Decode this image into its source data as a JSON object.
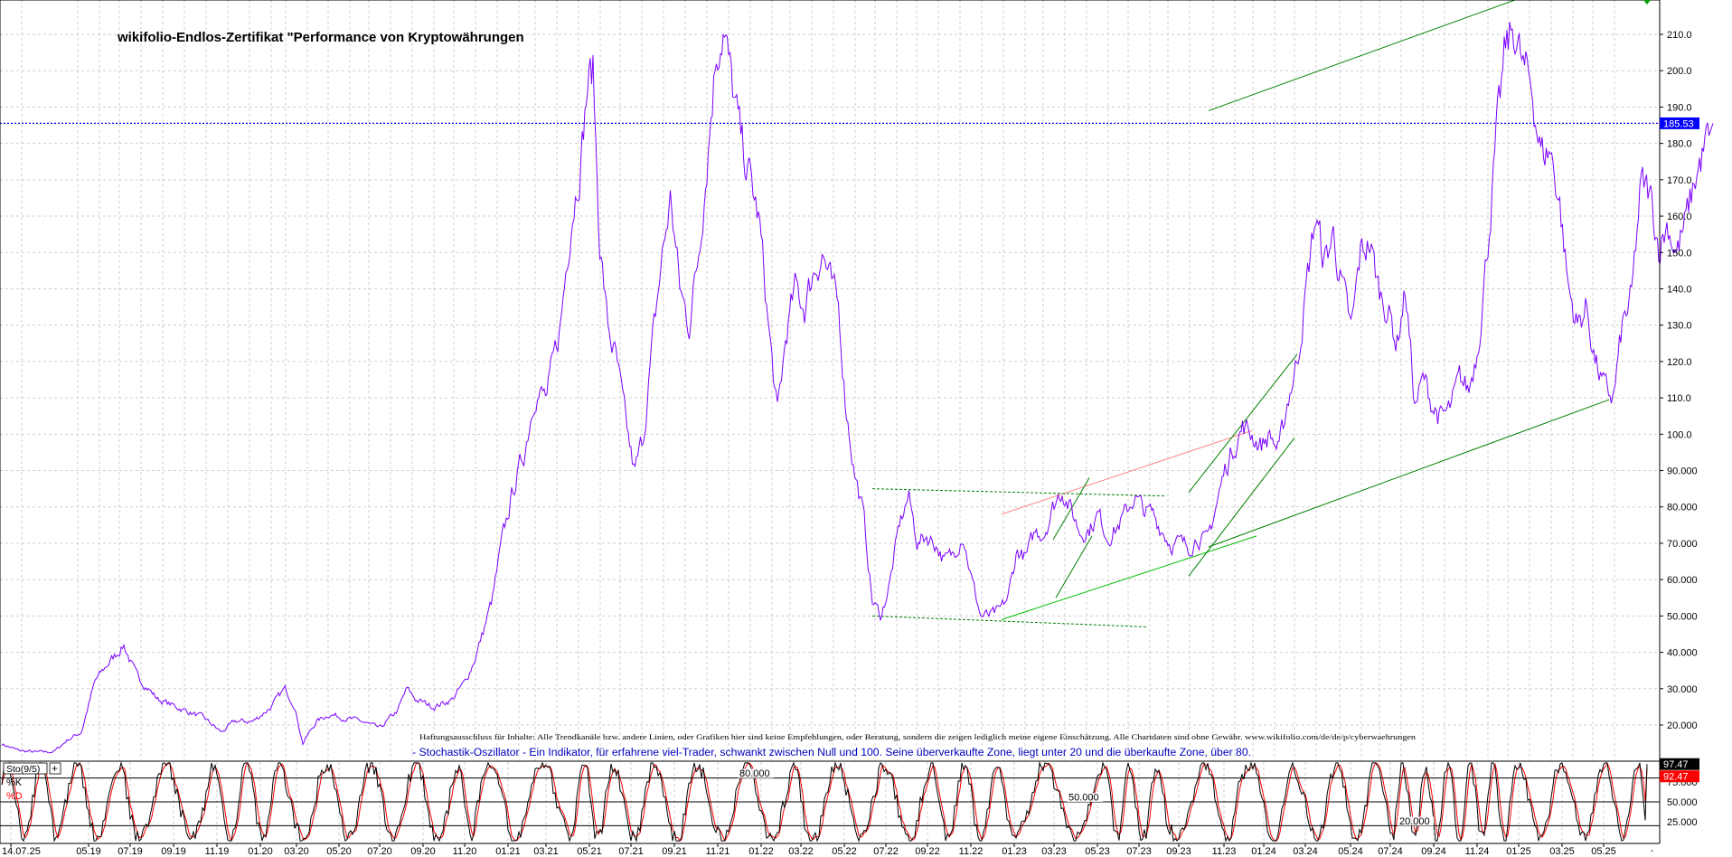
{
  "chart_data": [
    {
      "type": "line",
      "title": "wikifolio-Endlos-Zertifikat \"Performance von Kryptowährungen",
      "ylim": [
        10,
        220
      ],
      "y_ticks": [
        20,
        30,
        40,
        50,
        60,
        70,
        80,
        90,
        100,
        110,
        120,
        130,
        140,
        150,
        160,
        170,
        180,
        190,
        200,
        210
      ],
      "y_tick_labels": [
        "20.000",
        "30.000",
        "40.000",
        "50.000",
        "60.000",
        "70.000",
        "80.000",
        "90.000",
        "100.0",
        "110.0",
        "120.0",
        "130.0",
        "140.0",
        "150.0",
        "160.0",
        "170.0",
        "180.0",
        "190.0",
        "200.0",
        "210.0"
      ],
      "x_tick_labels": [
        "14.07.25",
        "05.19",
        "07.19",
        "09.19",
        "11.19",
        "01.20",
        "03.20",
        "05.20",
        "07.20",
        "09.20",
        "11.20",
        "01.21",
        "03.21",
        "05.21",
        "07.21",
        "09.21",
        "11.21",
        "01.22",
        "03.22",
        "05.22",
        "07.22",
        "09.22",
        "11.22",
        "01.23",
        "03.23",
        "05.23",
        "07.23",
        "09.23",
        "11.23",
        "01.24",
        "03.24",
        "05.24",
        "07.24",
        "09.24",
        "11.24",
        "01.25",
        "03.25",
        "05.25"
      ],
      "current_value": 185.53,
      "current_value_label": "185.53",
      "grid": true,
      "disclaimer": "Haftungsausschluss für Inhalte: Alle Trendkanäle bzw. andere Linien, oder Grafiken hier sind keine Empfehlungen, oder Beratung, sondern die zeigen lediglich meine eigene Einschätzung. Alle Chartdaten sind ohne Gewähr. www.wikifolio.com/de/de/p/cyberwaehrungen",
      "anchors": [
        [
          0,
          15
        ],
        [
          20,
          13
        ],
        [
          40,
          12.5
        ],
        [
          60,
          12.7
        ],
        [
          75,
          16
        ],
        [
          90,
          18
        ],
        [
          105,
          32
        ],
        [
          120,
          37
        ],
        [
          137,
          42
        ],
        [
          150,
          34
        ],
        [
          175,
          27
        ],
        [
          205,
          24
        ],
        [
          225,
          22
        ],
        [
          245,
          18
        ],
        [
          260,
          21
        ],
        [
          280,
          21
        ],
        [
          300,
          25
        ],
        [
          315,
          30
        ],
        [
          325,
          26
        ],
        [
          335,
          15
        ],
        [
          350,
          21
        ],
        [
          365,
          23
        ],
        [
          380,
          22
        ],
        [
          400,
          21
        ],
        [
          420,
          19
        ],
        [
          440,
          24
        ],
        [
          450,
          30
        ],
        [
          460,
          27
        ],
        [
          480,
          25
        ],
        [
          500,
          27
        ],
        [
          515,
          32
        ],
        [
          525,
          38
        ],
        [
          535,
          46
        ],
        [
          545,
          55
        ],
        [
          555,
          70
        ],
        [
          568,
          85
        ],
        [
          580,
          95
        ],
        [
          592,
          112
        ],
        [
          605,
          110
        ],
        [
          620,
          130
        ],
        [
          632,
          160
        ],
        [
          642,
          175
        ],
        [
          650,
          196
        ],
        [
          656,
          200
        ],
        [
          663,
          155
        ],
        [
          672,
          130
        ],
        [
          682,
          120
        ],
        [
          692,
          103
        ],
        [
          702,
          89
        ],
        [
          712,
          100
        ],
        [
          722,
          125
        ],
        [
          732,
          148
        ],
        [
          742,
          165
        ],
        [
          752,
          140
        ],
        [
          762,
          130
        ],
        [
          772,
          148
        ],
        [
          782,
          175
        ],
        [
          792,
          205
        ],
        [
          800,
          212
        ],
        [
          810,
          195
        ],
        [
          820,
          180
        ],
        [
          830,
          170
        ],
        [
          840,
          158
        ],
        [
          850,
          130
        ],
        [
          860,
          105
        ],
        [
          870,
          128
        ],
        [
          880,
          140
        ],
        [
          890,
          135
        ],
        [
          900,
          145
        ],
        [
          910,
          150
        ],
        [
          920,
          140
        ],
        [
          928,
          134
        ],
        [
          935,
          110
        ],
        [
          945,
          90
        ],
        [
          955,
          78
        ],
        [
          965,
          54
        ],
        [
          975,
          50
        ],
        [
          985,
          60
        ],
        [
          995,
          75
        ],
        [
          1005,
          83
        ],
        [
          1015,
          70
        ],
        [
          1025,
          72
        ],
        [
          1035,
          70
        ],
        [
          1045,
          65
        ],
        [
          1055,
          67
        ],
        [
          1065,
          73
        ],
        [
          1075,
          60
        ],
        [
          1085,
          50
        ],
        [
          1095,
          50
        ],
        [
          1105,
          51
        ],
        [
          1115,
          55
        ],
        [
          1125,
          68
        ],
        [
          1135,
          66
        ],
        [
          1145,
          73
        ],
        [
          1155,
          73
        ],
        [
          1165,
          80
        ],
        [
          1175,
          85
        ],
        [
          1185,
          79
        ],
        [
          1195,
          73
        ],
        [
          1205,
          74
        ],
        [
          1215,
          78
        ],
        [
          1225,
          72
        ],
        [
          1235,
          74
        ],
        [
          1245,
          78
        ],
        [
          1255,
          83
        ],
        [
          1265,
          79
        ],
        [
          1275,
          78
        ],
        [
          1285,
          74
        ],
        [
          1295,
          70
        ],
        [
          1305,
          70
        ],
        [
          1315,
          69
        ],
        [
          1325,
          72
        ],
        [
          1335,
          70
        ],
        [
          1345,
          80
        ],
        [
          1355,
          90
        ],
        [
          1365,
          97
        ],
        [
          1375,
          102
        ],
        [
          1385,
          100
        ],
        [
          1395,
          97
        ],
        [
          1405,
          100
        ],
        [
          1415,
          95
        ],
        [
          1425,
          110
        ],
        [
          1435,
          120
        ],
        [
          1445,
          140
        ],
        [
          1455,
          160
        ],
        [
          1465,
          147
        ],
        [
          1475,
          155
        ],
        [
          1485,
          140
        ],
        [
          1495,
          128
        ],
        [
          1505,
          150
        ],
        [
          1515,
          153
        ],
        [
          1525,
          140
        ],
        [
          1535,
          135
        ],
        [
          1545,
          125
        ],
        [
          1555,
          140
        ],
        [
          1565,
          108
        ],
        [
          1575,
          115
        ],
        [
          1585,
          108
        ],
        [
          1595,
          104
        ],
        [
          1605,
          107
        ],
        [
          1615,
          115
        ],
        [
          1625,
          112
        ],
        [
          1635,
          125
        ],
        [
          1645,
          150
        ],
        [
          1655,
          180
        ],
        [
          1665,
          205
        ],
        [
          1675,
          212
        ],
        [
          1685,
          200
        ],
        [
          1695,
          195
        ],
        [
          1705,
          177
        ],
        [
          1715,
          178
        ],
        [
          1725,
          165
        ],
        [
          1735,
          140
        ],
        [
          1745,
          130
        ],
        [
          1755,
          135
        ],
        [
          1765,
          120
        ],
        [
          1775,
          112
        ],
        [
          1785,
          110
        ],
        [
          1795,
          130
        ],
        [
          1805,
          137
        ],
        [
          1815,
          168
        ],
        [
          1825,
          166
        ],
        [
          1835,
          152
        ],
        [
          1845,
          158
        ],
        [
          1855,
          150
        ],
        [
          1865,
          158
        ],
        [
          1875,
          170
        ],
        [
          1885,
          178
        ],
        [
          1895,
          185.53
        ]
      ],
      "trendlines": [
        {
          "color": "#008000",
          "style": "solid",
          "points": [
            [
              1337,
              189
            ],
            [
              1682,
              220
            ]
          ]
        },
        {
          "color": "#008000",
          "style": "solid",
          "points": [
            [
              1337,
              69
            ],
            [
              1780,
              109.5
            ]
          ]
        },
        {
          "color": "#00c000",
          "style": "solid",
          "points": [
            [
              1108,
              49
            ],
            [
              1390,
              72
            ]
          ]
        },
        {
          "color": "#ff8080",
          "style": "solid",
          "points": [
            [
              1108,
              78
            ],
            [
              1385,
              101
            ]
          ]
        },
        {
          "color": "#008000",
          "style": "dash",
          "points": [
            [
              965,
              85
            ],
            [
              1290,
              83
            ]
          ]
        },
        {
          "color": "#008000",
          "style": "dash",
          "points": [
            [
              965,
              50
            ],
            [
              1268,
              47
            ]
          ]
        },
        {
          "color": "#008000",
          "style": "solid",
          "points": [
            [
              1165,
              71
            ],
            [
              1205,
              88
            ]
          ]
        },
        {
          "color": "#008000",
          "style": "solid",
          "points": [
            [
              1168,
              55
            ],
            [
              1208,
              72
            ]
          ]
        },
        {
          "color": "#008000",
          "style": "solid",
          "points": [
            [
              1315,
              84
            ],
            [
              1435,
              122
            ]
          ]
        },
        {
          "color": "#008000",
          "style": "solid",
          "points": [
            [
              1315,
              61
            ],
            [
              1432,
              99
            ]
          ]
        }
      ]
    },
    {
      "type": "line",
      "indicator_label": "Sto(9/5)",
      "description": "- Stochastik-Oszillator - Ein Indikator, für erfahrene viel-Trader, schwankt zwischen Null und 100. Seine überverkaufte Zone, liegt unter 20 und die überkaufte Zone, über 80.",
      "ylim": [
        0,
        100
      ],
      "y_ticks": [
        25,
        50,
        75
      ],
      "y_tick_labels": [
        "25.000",
        "50.000",
        "75.000"
      ],
      "series": [
        {
          "name": "%K",
          "color": "#000000",
          "last": 97.47,
          "last_label": "97.47"
        },
        {
          "name": "%D",
          "color": "#ff0000",
          "last": 92.47,
          "last_label": "92.47"
        }
      ],
      "reference_levels": [
        {
          "value": 80,
          "label": "80.000"
        },
        {
          "value": 50,
          "label": "50.000"
        },
        {
          "value": 20,
          "label": "20.000"
        }
      ]
    }
  ],
  "colors": {
    "price_line": "#7b00ff",
    "current_line": "#0000ff",
    "current_badge": "#0000ff",
    "k_badge": "#000000",
    "d_badge": "#ff0000",
    "grid": "#cfcfcf",
    "frame": "#000000",
    "description_text": "#0000c0"
  }
}
